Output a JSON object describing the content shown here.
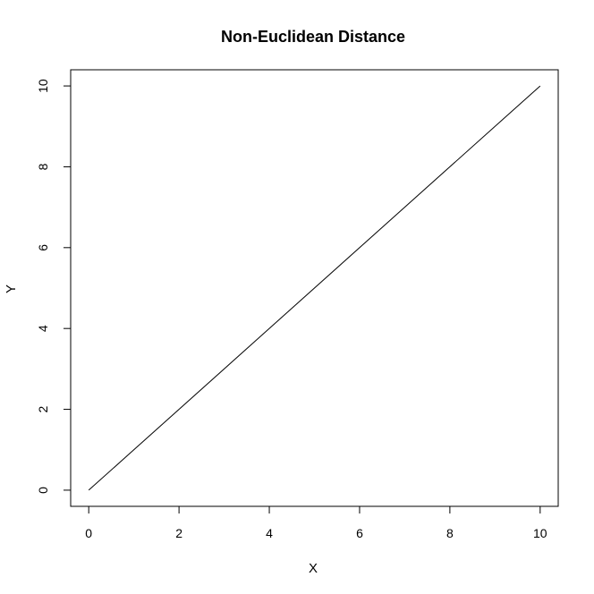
{
  "chart_data": {
    "type": "line",
    "title": "Non-Euclidean Distance",
    "xlabel": "X",
    "ylabel": "Y",
    "xlim": [
      -0.4,
      10.4
    ],
    "ylim": [
      -0.4,
      10.4
    ],
    "xticks": [
      0,
      2,
      4,
      6,
      8,
      10
    ],
    "yticks": [
      0,
      2,
      4,
      6,
      8,
      10
    ],
    "grid": false,
    "series": [
      {
        "x": [
          0,
          10
        ],
        "y": [
          0,
          10
        ],
        "color": "#000000"
      }
    ]
  }
}
